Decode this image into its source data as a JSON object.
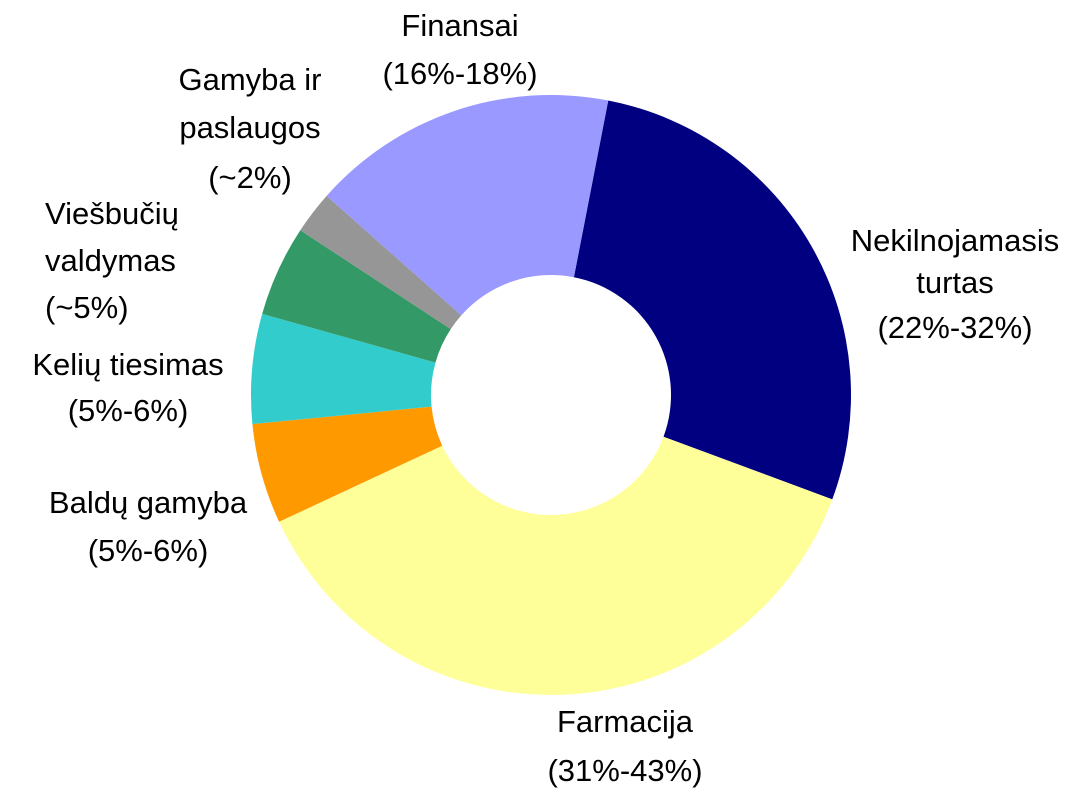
{
  "chart_data": {
    "type": "donut",
    "categories": [
      [
        "Nekilnojamasis",
        "turtas",
        "(22%-32%)"
      ],
      [
        "Farmacija",
        "(31%-43%)"
      ],
      [
        "Baldų gamyba",
        "(5%-6%)"
      ],
      [
        "Kelių tiesimas",
        "(5%-6%)"
      ],
      [
        "Viešbučių",
        "valdymas",
        "(~5%)"
      ],
      [
        "Gamyba ir",
        "paslaugos",
        "(~2%)"
      ],
      [
        "Finansai",
        "(16%-18%)"
      ]
    ],
    "values": [
      27.6,
      37.4,
      5.4,
      5.9,
      4.9,
      2.3,
      16.5
    ],
    "colors": [
      "#000080",
      "#ffff99",
      "#ff9900",
      "#33cccc",
      "#339966",
      "#969696",
      "#9999ff"
    ]
  }
}
